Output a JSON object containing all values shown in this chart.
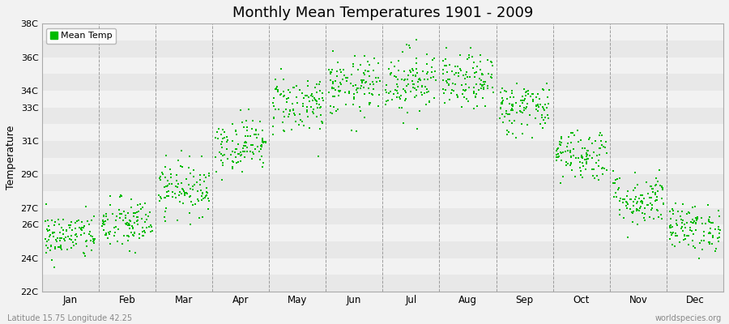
{
  "title": "Monthly Mean Temperatures 1901 - 2009",
  "ylabel": "Temperature",
  "months": [
    "Jan",
    "Feb",
    "Mar",
    "Apr",
    "May",
    "Jun",
    "Jul",
    "Aug",
    "Sep",
    "Oct",
    "Nov",
    "Dec"
  ],
  "ylim": [
    22,
    38
  ],
  "ytick_vals": [
    22,
    24,
    26,
    27,
    29,
    31,
    33,
    34,
    36,
    38
  ],
  "ytick_labels": [
    "22C",
    "24C",
    "26C",
    "27C",
    "29C",
    "31C",
    "33C",
    "34C",
    "36C",
    "38C"
  ],
  "mean_temps": [
    25.3,
    26.0,
    28.2,
    30.8,
    33.2,
    34.2,
    34.6,
    34.5,
    33.0,
    30.2,
    27.5,
    25.8
  ],
  "stds": [
    0.7,
    0.8,
    0.8,
    0.8,
    0.9,
    0.9,
    1.0,
    0.8,
    0.8,
    0.8,
    0.8,
    0.7
  ],
  "scatter_color": "#00bb00",
  "bg_light": "#f2f2f2",
  "bg_dark": "#e4e4e4",
  "grid_color": "#999999",
  "subtitle_left": "Latitude 15.75 Longitude 42.25",
  "subtitle_right": "worldspecies.org",
  "years": 109,
  "legend_label": "Mean Temp"
}
